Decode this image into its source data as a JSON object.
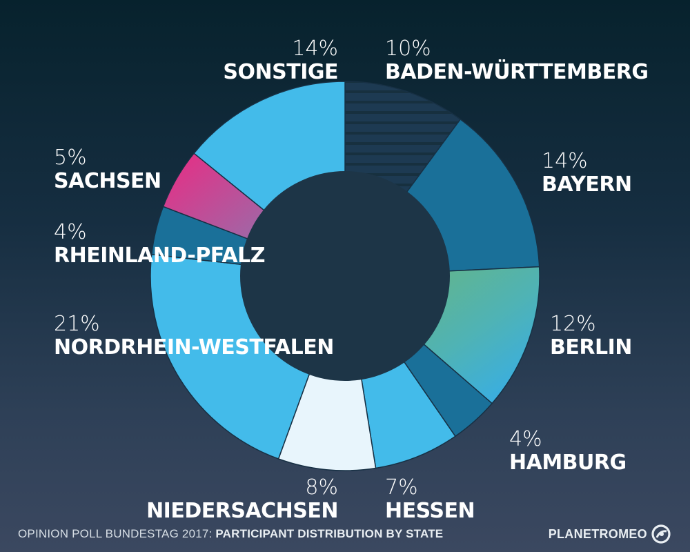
{
  "chart_data": {
    "type": "pie",
    "variant": "donut",
    "title": "OPINION POLL BUNDESTAG 2017:",
    "subtitle": "PARTICIPANT DISTRIBUTION BY STATE",
    "slices": [
      {
        "label": "BADEN-WÜRTTEMBERG",
        "value": 10,
        "value_text": "10%",
        "color": "#1b3a52"
      },
      {
        "label": "BAYERN",
        "value": 14,
        "value_text": "14%",
        "color": "#1a7099"
      },
      {
        "label": "BERLIN",
        "value": 12,
        "value_text": "12%",
        "color": "#5bb28f"
      },
      {
        "label": "HAMBURG",
        "value": 4,
        "value_text": "4%",
        "color": "#1a7099"
      },
      {
        "label": "HESSEN",
        "value": 7,
        "value_text": "7%",
        "color": "#43bbea"
      },
      {
        "label": "NIEDERSACHSEN",
        "value": 8,
        "value_text": "8%",
        "color": "#e8f5fc"
      },
      {
        "label": "NORDRHEIN-WESTFALEN",
        "value": 21,
        "value_text": "21%",
        "color": "#43bbea"
      },
      {
        "label": "RHEINLAND-PFALZ",
        "value": 4,
        "value_text": "4%",
        "color": "#1a7099"
      },
      {
        "label": "SACHSEN",
        "value": 5,
        "value_text": "5%",
        "color": "#e23585"
      },
      {
        "label": "SONSTIGE",
        "value": 14,
        "value_text": "14%",
        "color": "#43bbea"
      }
    ],
    "legend": "none"
  },
  "footer": {
    "title": "OPINION POLL BUNDESTAG 2017:",
    "subtitle": "PARTICIPANT DISTRIBUTION BY STATE"
  },
  "brand": {
    "name": "PLANETROMEO",
    "icon": "planetromeo-logo-icon"
  }
}
